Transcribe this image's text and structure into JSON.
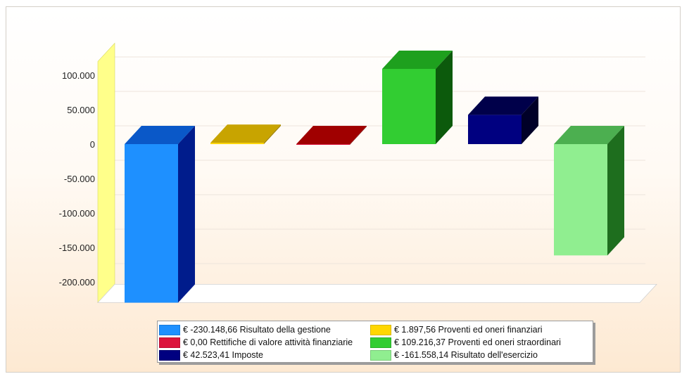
{
  "chart_data": {
    "type": "bar",
    "title": "",
    "xlabel": "",
    "ylabel": "",
    "three_d": true,
    "ylim": [
      -230000,
      120000
    ],
    "yticks": [
      100000,
      50000,
      0,
      -50000,
      -100000,
      -150000,
      -200000
    ],
    "ytick_labels": [
      "100.000",
      "50.000",
      "0",
      "-50.000",
      "-100.000",
      "-150.000",
      "-200.000"
    ],
    "grid": true,
    "legend_position": "bottom",
    "series": [
      {
        "name": "Risultato della gestione",
        "value": -230148.66,
        "legend_label": "€ -230.148,66 Risultato della gestione",
        "color": "#1e90ff"
      },
      {
        "name": "Proventi ed oneri finanziari",
        "value": 1897.56,
        "legend_label": "€  1.897,56 Proventi ed oneri finanziari",
        "color": "#ffd700"
      },
      {
        "name": "Rettifiche di valore attività finanziarie",
        "value": 0.0,
        "legend_label": "€  0,00 Rettifiche di valore attività finanziarie",
        "color": "#dc143c"
      },
      {
        "name": "Proventi ed oneri straordinari",
        "value": 109216.37,
        "legend_label": "€  109.216,37 Proventi ed oneri straordinari",
        "color": "#32cd32"
      },
      {
        "name": "Imposte",
        "value": 42523.41,
        "legend_label": "€  42.523,41 Imposte",
        "color": "#000080"
      },
      {
        "name": "Risultato dell'esercizio",
        "value": -161558.14,
        "legend_label": "€ -161.558,14 Risultato dell'esercizio",
        "color": "#90ee90"
      }
    ],
    "bar_colors": {
      "front": [
        "#1e90ff",
        "#ffd700",
        "#dc143c",
        "#32cd32",
        "#000080",
        "#90ee90"
      ],
      "top": [
        "#0a58c8",
        "#c8a400",
        "#a00000",
        "#1ea01e",
        "#00004a",
        "#4caf50"
      ],
      "side": [
        "#001c8c",
        "#9e8000",
        "#7a0000",
        "#0c5a0c",
        "#000028",
        "#1e6e1e"
      ]
    },
    "wall_color": "#ffff8a",
    "floor_color": "#ffffff"
  },
  "legend": {
    "order": [
      0,
      1,
      2,
      3,
      4,
      5
    ]
  }
}
